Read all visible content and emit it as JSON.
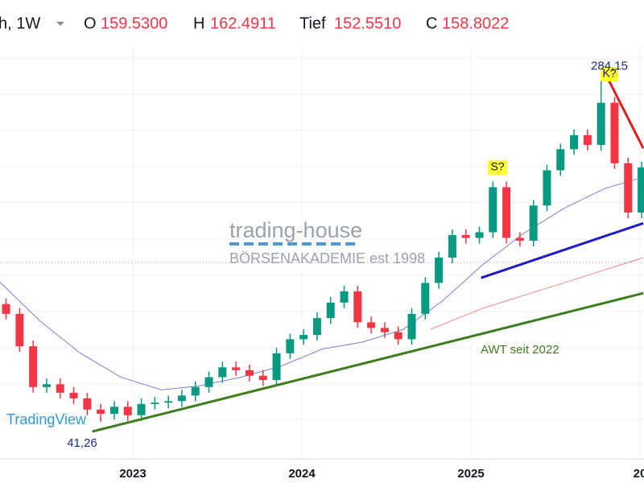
{
  "chart_data": {
    "type": "candlestick",
    "header": {
      "symbol": "h, 1W",
      "open_label": "O",
      "open": "159.5300",
      "high_label": "H",
      "high": "162.4911",
      "low_label": "Tief",
      "low": "152.5510",
      "close_label": "C",
      "close": "158.8022"
    },
    "x": [
      2022.25,
      2022.33,
      2022.41,
      2022.49,
      2022.57,
      2022.65,
      2022.73,
      2022.81,
      2022.89,
      2022.97,
      2023.05,
      2023.13,
      2023.21,
      2023.29,
      2023.37,
      2023.45,
      2023.53,
      2023.61,
      2023.69,
      2023.77,
      2023.85,
      2023.93,
      2024.01,
      2024.09,
      2024.17,
      2024.25,
      2024.33,
      2024.41,
      2024.49,
      2024.57,
      2024.65,
      2024.73,
      2024.81,
      2024.89,
      2024.97,
      2025.05,
      2025.13,
      2025.21,
      2025.29,
      2025.37,
      2025.45,
      2025.53,
      2025.61,
      2025.69,
      2025.77,
      2025.85,
      2025.93,
      2026.01
    ],
    "open": [
      125,
      118,
      95,
      66,
      68,
      62,
      58,
      50,
      47,
      52,
      46,
      54,
      55,
      56,
      60,
      66,
      73,
      80,
      78,
      74,
      71,
      90,
      100,
      103,
      115,
      126,
      134,
      112,
      108,
      105,
      100,
      118,
      140,
      158,
      174,
      172,
      176,
      208,
      172,
      170,
      195,
      220,
      235,
      245,
      238,
      268,
      225,
      190
    ],
    "high": [
      129,
      122,
      99,
      72,
      72,
      66,
      62,
      54,
      56,
      56,
      58,
      59,
      60,
      64,
      70,
      77,
      84,
      84,
      82,
      78,
      94,
      104,
      107,
      119,
      130,
      138,
      138,
      116,
      112,
      109,
      122,
      144,
      162,
      178,
      178,
      180,
      212,
      212,
      176,
      199,
      224,
      239,
      249,
      249,
      284.15,
      272,
      229,
      226
    ],
    "low": [
      114,
      91,
      62,
      62,
      58,
      54,
      46,
      41.26,
      43,
      42,
      42,
      50,
      51,
      52,
      56,
      62,
      69,
      74,
      70,
      67,
      67,
      86,
      96,
      99,
      111,
      122,
      108,
      104,
      101,
      96,
      96,
      114,
      136,
      154,
      168,
      168,
      172,
      168,
      166,
      166,
      191,
      216,
      231,
      234,
      234,
      221,
      186,
      186
    ],
    "close": [
      118,
      95,
      66,
      68,
      62,
      58,
      50,
      47,
      52,
      46,
      54,
      55,
      56,
      60,
      66,
      73,
      80,
      78,
      74,
      71,
      90,
      100,
      103,
      115,
      126,
      134,
      112,
      108,
      105,
      100,
      118,
      140,
      158,
      174,
      172,
      176,
      208,
      172,
      170,
      195,
      220,
      235,
      245,
      238,
      268,
      225,
      190,
      222
    ],
    "up_color": "#089981",
    "down_color": "#f23645",
    "moving_averages": [
      {
        "color": "#7b7fd9",
        "x": [
          2022.21,
          2022.45,
          2022.69,
          2022.93,
          2023.17,
          2023.4,
          2023.64,
          2023.88,
          2024.12,
          2024.36,
          2024.6,
          2024.83,
          2025.07,
          2025.31,
          2025.55,
          2025.79,
          2026.02
        ],
        "values": [
          141,
          113,
          90,
          73,
          64,
          67,
          73,
          81,
          93,
          98,
          107,
          127,
          153,
          175,
          193,
          207,
          215
        ]
      },
      {
        "color": "#f08a8a",
        "x": [
          2024.76,
          2025.07,
          2025.55,
          2026.02
        ],
        "values": [
          107,
          122,
          140,
          158
        ]
      }
    ],
    "trendlines": [
      {
        "color": "#3f7d1e",
        "x": [
          2022.76,
          2026.02
        ],
        "values": [
          34.4,
          132.7
        ]
      },
      {
        "color": "#1a1acc",
        "x": [
          2025.06,
          2026.02
        ],
        "values": [
          143.6,
          182.4
        ]
      },
      {
        "color": "#e02020",
        "x": [
          2025.81,
          2026.02
        ],
        "values": [
          285.3,
          235.6
        ]
      }
    ],
    "price_labels": [
      {
        "value": 284.15,
        "label": "284,15"
      },
      {
        "value": 41.26,
        "label": "41,26"
      }
    ],
    "annotations": {
      "top": "K?",
      "shoulder": "S?",
      "trend": "AWT seit 2022",
      "logo": "TradingView",
      "watermark": "trading-house",
      "watermark_sub": "BÖRSENAKADEMIE est 1998"
    },
    "xlim": [
      2022.214,
      2026.024
    ],
    "ylim": [
      15,
      341
    ],
    "xticks": [
      2023,
      2024,
      2025,
      {
        "value": 2026,
        "label": "20"
      }
    ],
    "grid": true
  }
}
